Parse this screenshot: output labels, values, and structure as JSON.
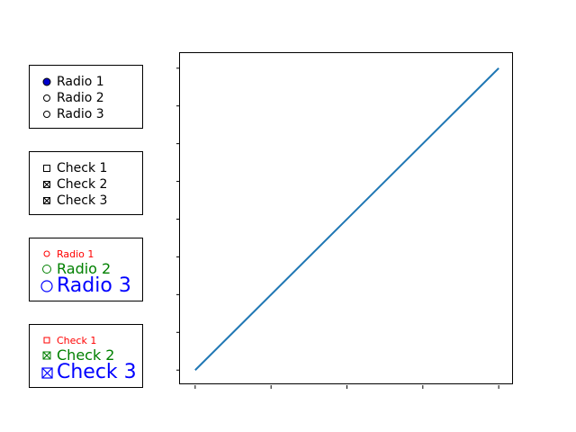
{
  "radio_panel_1": {
    "options": [
      {
        "label": "Radio 1",
        "selected": true
      },
      {
        "label": "Radio 2",
        "selected": false
      },
      {
        "label": "Radio 3",
        "selected": false
      }
    ],
    "active_color": "#0000cc"
  },
  "check_panel_1": {
    "options": [
      {
        "label": "Check 1",
        "checked": false
      },
      {
        "label": "Check 2",
        "checked": true
      },
      {
        "label": "Check 3",
        "checked": true
      }
    ]
  },
  "radio_panel_2": {
    "options": [
      {
        "label": "Radio 1",
        "selected": false,
        "color": "#ff0000"
      },
      {
        "label": "Radio 2",
        "selected": false,
        "color": "#008000"
      },
      {
        "label": "Radio 3",
        "selected": false,
        "color": "#0000ff"
      }
    ]
  },
  "check_panel_2": {
    "options": [
      {
        "label": "Check 1",
        "checked": false,
        "color": "#ff0000"
      },
      {
        "label": "Check 2",
        "checked": true,
        "color": "#008000"
      },
      {
        "label": "Check 3",
        "checked": true,
        "color": "#0000ff"
      }
    ]
  },
  "chart_data": {
    "type": "line",
    "series": [
      {
        "x": [
          0,
          1
        ],
        "y": [
          0,
          1
        ],
        "color": "#1f77b4"
      }
    ],
    "xlim": [
      -0.05,
      1.05
    ],
    "ylim": [
      -0.05,
      1.05
    ],
    "tick_labels_shown": false,
    "grid": false
  }
}
